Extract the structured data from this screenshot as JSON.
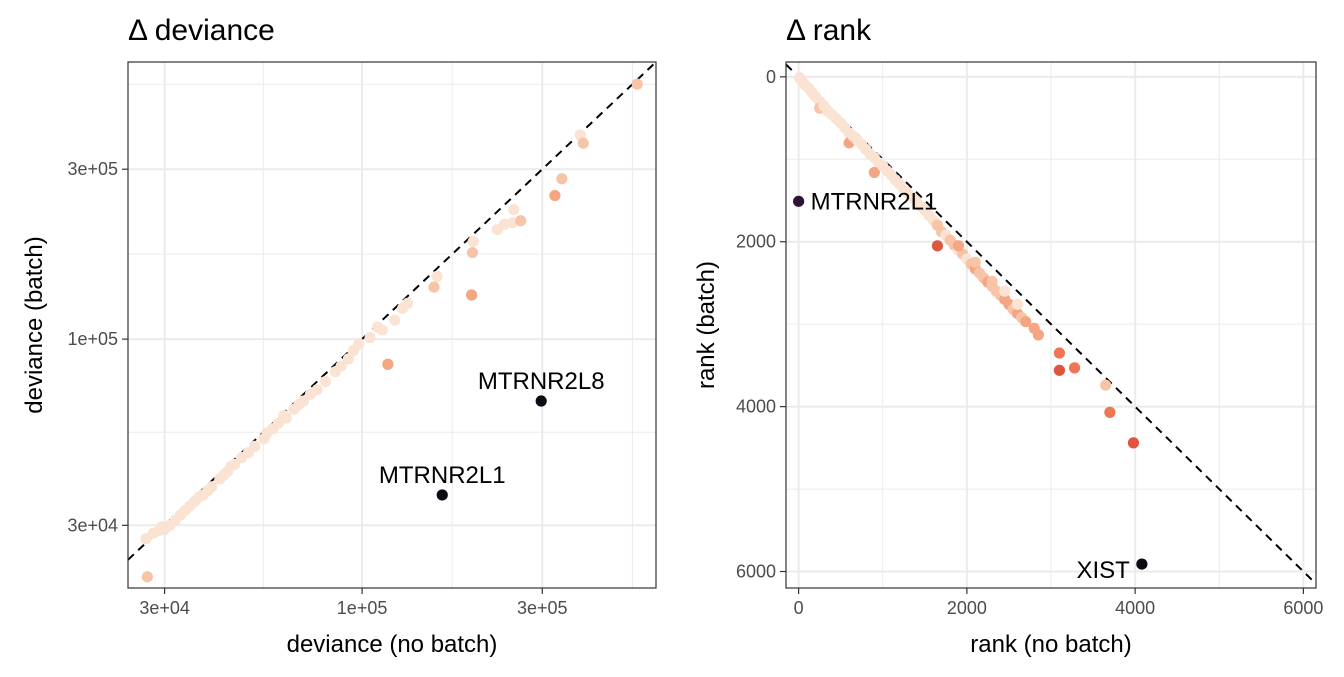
{
  "chart_data": [
    {
      "type": "scatter",
      "title": "Δ deviance",
      "xlabel": "deviance (no batch)",
      "ylabel": "deviance (batch)",
      "x_scale": "log10",
      "y_scale": "log10",
      "xlim": [
        24000,
        600000
      ],
      "ylim": [
        20000,
        600000
      ],
      "x_ticks": [
        30000,
        100000,
        300000
      ],
      "x_tick_labels": [
        "3e+04",
        "1e+05",
        "3e+05"
      ],
      "y_ticks": [
        30000,
        100000,
        300000
      ],
      "y_tick_labels": [
        "3e+04",
        "1e+05",
        "3e+05"
      ],
      "grid": true,
      "reference_line": "y = x (dashed)",
      "color_scale": [
        "#fbe3d4",
        "#f8c4a7",
        "#f4a582",
        "#ef7555",
        "#e0553f",
        "#2b1533",
        "#0b0b14"
      ],
      "labels": [
        {
          "text": "MTRNR2L8",
          "x": 298000,
          "y": 67000
        },
        {
          "text": "MTRNR2L1",
          "x": 163000,
          "y": 36500
        }
      ],
      "series": [
        {
          "points": [
            [
              26800,
              27500,
              0
            ],
            [
              27000,
              21500,
              1
            ],
            [
              28000,
              28500,
              0
            ],
            [
              29000,
              29000,
              0
            ],
            [
              29500,
              29700,
              0
            ],
            [
              30000,
              29200,
              0
            ],
            [
              31000,
              30000,
              0
            ],
            [
              32000,
              31000,
              0
            ],
            [
              33000,
              32000,
              0
            ],
            [
              34000,
              33000,
              0
            ],
            [
              35000,
              34000,
              0
            ],
            [
              36000,
              35000,
              0
            ],
            [
              37000,
              36000,
              0
            ],
            [
              38000,
              36500,
              0
            ],
            [
              39000,
              37500,
              0
            ],
            [
              40000,
              38500,
              0
            ],
            [
              42000,
              40500,
              0
            ],
            [
              44000,
              42500,
              0
            ],
            [
              46000,
              44500,
              0
            ],
            [
              48000,
              46500,
              0
            ],
            [
              50000,
              48000,
              0
            ],
            [
              52000,
              50000,
              0
            ],
            [
              55000,
              52500,
              0
            ],
            [
              58000,
              56000,
              0
            ],
            [
              60000,
              58000,
              0
            ],
            [
              63000,
              60000,
              0
            ],
            [
              66000,
              63500,
              0
            ],
            [
              70000,
              67000,
              0
            ],
            [
              73000,
              70000,
              0
            ],
            [
              76000,
              72000,
              0
            ],
            [
              80000,
              76000,
              0
            ],
            [
              85000,
              81000,
              0
            ],
            [
              88000,
              84000,
              0
            ],
            [
              92000,
              88000,
              0
            ],
            [
              95000,
              93000,
              0
            ],
            [
              98000,
              97000,
              0
            ],
            [
              105000,
              101000,
              0
            ],
            [
              110000,
              108000,
              0
            ],
            [
              113000,
              106000,
              0
            ],
            [
              117000,
              85000,
              2
            ],
            [
              122000,
              113000,
              0
            ],
            [
              128000,
              122000,
              0
            ],
            [
              132000,
              126000,
              0
            ],
            [
              155000,
              140000,
              1
            ],
            [
              158000,
              150000,
              0
            ],
            [
              195000,
              133000,
              2
            ],
            [
              196000,
              175000,
              1
            ],
            [
              197000,
              188000,
              0
            ],
            [
              228000,
              203000,
              0
            ],
            [
              238000,
              210000,
              0
            ],
            [
              250000,
              212000,
              0
            ],
            [
              252000,
              231000,
              0
            ],
            [
              263000,
              215000,
              1
            ],
            [
              324000,
              253000,
              2
            ],
            [
              338000,
              282000,
              1
            ],
            [
              378000,
              374000,
              0
            ],
            [
              385000,
              355000,
              1
            ],
            [
              535000,
              520000,
              1
            ],
            [
              298000,
              67000,
              6
            ],
            [
              163000,
              36500,
              6
            ],
            [
              45000,
              44000,
              0
            ],
            [
              43000,
              41500,
              0
            ],
            [
              56000,
              54500,
              0
            ],
            [
              68000,
              65500,
              0
            ],
            [
              62000,
              61000,
              0
            ]
          ]
        }
      ]
    },
    {
      "type": "scatter",
      "title": "Δ rank",
      "xlabel": "rank (no batch)",
      "ylabel": "rank (batch)",
      "xlim": [
        -150,
        6150
      ],
      "ylim": [
        6200,
        -180
      ],
      "y_reversed": true,
      "x_ticks": [
        0,
        2000,
        4000,
        6000
      ],
      "x_tick_labels": [
        "0",
        "2000",
        "4000",
        "6000"
      ],
      "y_ticks": [
        0,
        2000,
        4000,
        6000
      ],
      "y_tick_labels": [
        "0",
        "2000",
        "4000",
        "6000"
      ],
      "grid": true,
      "reference_line": "y = x (dashed)",
      "color_scale": [
        "#fbe3d4",
        "#f8c4a7",
        "#f4a582",
        "#ef7555",
        "#e0553f",
        "#2b1533",
        "#0b0b14"
      ],
      "labels": [
        {
          "text": "MTRNR2L1",
          "x": 0,
          "y": 1510
        },
        {
          "text": "XIST",
          "x": 4080,
          "y": 5910
        }
      ],
      "series": [
        {
          "points": [
            [
              10,
              10,
              0
            ],
            [
              40,
              50,
              0
            ],
            [
              80,
              100,
              0
            ],
            [
              120,
              140,
              0
            ],
            [
              160,
              190,
              0
            ],
            [
              200,
              240,
              0
            ],
            [
              250,
              300,
              0
            ],
            [
              250,
              380,
              1
            ],
            [
              300,
              350,
              0
            ],
            [
              350,
              420,
              0
            ],
            [
              400,
              460,
              0
            ],
            [
              450,
              510,
              0
            ],
            [
              500,
              560,
              0
            ],
            [
              550,
              620,
              0
            ],
            [
              600,
              680,
              0
            ],
            [
              600,
              800,
              2
            ],
            [
              650,
              720,
              0
            ],
            [
              700,
              770,
              0
            ],
            [
              750,
              820,
              0
            ],
            [
              800,
              880,
              0
            ],
            [
              850,
              940,
              0
            ],
            [
              900,
              980,
              0
            ],
            [
              950,
              1040,
              0
            ],
            [
              900,
              1160,
              2
            ],
            [
              1000,
              1080,
              0
            ],
            [
              1050,
              1140,
              0
            ],
            [
              1100,
              1190,
              0
            ],
            [
              1150,
              1250,
              0
            ],
            [
              1200,
              1300,
              0
            ],
            [
              1250,
              1360,
              0
            ],
            [
              1300,
              1410,
              0
            ],
            [
              1350,
              1460,
              0
            ],
            [
              1400,
              1510,
              0
            ],
            [
              1450,
              1570,
              0
            ],
            [
              1500,
              1620,
              0
            ],
            [
              1550,
              1680,
              0
            ],
            [
              1600,
              1740,
              0
            ],
            [
              1650,
              1800,
              1
            ],
            [
              1650,
              2050,
              4
            ],
            [
              1700,
              1880,
              1
            ],
            [
              1750,
              1920,
              0
            ],
            [
              1800,
              1980,
              1
            ],
            [
              1850,
              2040,
              1
            ],
            [
              1900,
              2100,
              0
            ],
            [
              1950,
              2150,
              1
            ],
            [
              2000,
              2210,
              0
            ],
            [
              2050,
              2270,
              1
            ],
            [
              2100,
              2330,
              2
            ],
            [
              2150,
              2380,
              1
            ],
            [
              2200,
              2440,
              1
            ],
            [
              2250,
              2490,
              2
            ],
            [
              2300,
              2540,
              1
            ],
            [
              2350,
              2600,
              1
            ],
            [
              2400,
              2650,
              1
            ],
            [
              2450,
              2700,
              2
            ],
            [
              2500,
              2760,
              2
            ],
            [
              2550,
              2820,
              1
            ],
            [
              2600,
              2870,
              2
            ],
            [
              2650,
              2920,
              1
            ],
            [
              2700,
              2970,
              2
            ],
            [
              2800,
              3050,
              2
            ],
            [
              2850,
              3130,
              2
            ],
            [
              3100,
              3350,
              3
            ],
            [
              3100,
              3560,
              4
            ],
            [
              3280,
              3530,
              3
            ],
            [
              3650,
              3740,
              1
            ],
            [
              3700,
              4070,
              3
            ],
            [
              3980,
              4440,
              4
            ],
            [
              0,
              1510,
              5
            ],
            [
              4080,
              5910,
              6
            ],
            [
              1900,
              2050,
              2
            ],
            [
              2100,
              2250,
              1
            ],
            [
              2300,
              2480,
              1
            ],
            [
              2450,
              2600,
              0
            ],
            [
              2600,
              2760,
              0
            ]
          ]
        }
      ]
    }
  ]
}
